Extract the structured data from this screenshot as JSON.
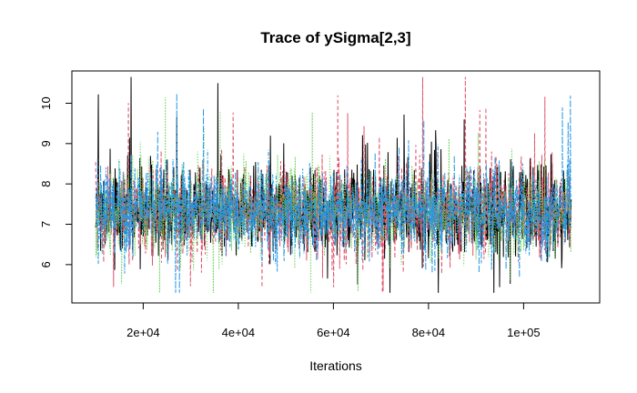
{
  "chart_data": {
    "type": "line",
    "title": "Trace of ySigma[2,3]",
    "xlabel": "Iterations",
    "ylabel": "",
    "xlim": [
      5000,
      116000
    ],
    "ylim": [
      5.05,
      10.8
    ],
    "x_ticks": [
      {
        "value": 20000,
        "label": "2e+04"
      },
      {
        "value": 40000,
        "label": "4e+04"
      },
      {
        "value": 60000,
        "label": "6e+04"
      },
      {
        "value": 80000,
        "label": "8e+04"
      },
      {
        "value": 100000,
        "label": "1e+05"
      }
    ],
    "y_ticks": [
      {
        "value": 6,
        "label": "6"
      },
      {
        "value": 7,
        "label": "7"
      },
      {
        "value": 8,
        "label": "8"
      },
      {
        "value": 9,
        "label": "9"
      },
      {
        "value": 10,
        "label": "10"
      }
    ],
    "grid": false,
    "legend": "none",
    "iterations": {
      "start": 10001,
      "end": 110000
    },
    "series": [
      {
        "color": "#000000",
        "dash": "solid",
        "mean": 7.35,
        "sd": 0.55
      },
      {
        "color": "#DF536B",
        "dash": "dashed",
        "mean": 7.35,
        "sd": 0.55
      },
      {
        "color": "#61D04F",
        "dash": "dotted",
        "mean": 7.35,
        "sd": 0.55
      },
      {
        "color": "#2297E6",
        "dash": "dotdash",
        "mean": 7.35,
        "sd": 0.55
      }
    ],
    "approx_range": [
      5.3,
      10.65
    ]
  }
}
